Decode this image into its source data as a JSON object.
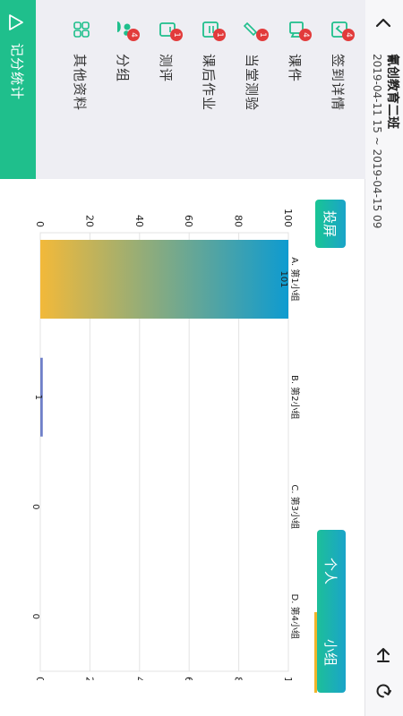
{
  "header": {
    "title": "氰创教育二班",
    "date_range": "2019-04-11 15 ~ 2019-04-15 09"
  },
  "sidebar": {
    "items": [
      {
        "label": "签到详情",
        "icon": "checkin-icon",
        "badge": "4"
      },
      {
        "label": "课件",
        "icon": "courseware-icon",
        "badge": "4"
      },
      {
        "label": "当堂测验",
        "icon": "quiz-icon",
        "badge": "1"
      },
      {
        "label": "课后作业",
        "icon": "homework-icon",
        "badge": "1"
      },
      {
        "label": "测评",
        "icon": "assessment-icon",
        "badge": "1"
      },
      {
        "label": "分组",
        "icon": "group-icon",
        "badge": "4"
      },
      {
        "label": "其他资料",
        "icon": "materials-icon",
        "badge": ""
      }
    ],
    "footer": {
      "label": "记分统计",
      "icon": "chart-triangle-icon"
    }
  },
  "toolbar": {
    "project_label": "投屏",
    "tab_individual": "个人",
    "tab_group": "小组",
    "active_tab": "小组"
  },
  "colors": {
    "accent": "#1fbf8c",
    "gradient_top": "#f2b93a",
    "gradient_bottom": "#0e9bd0",
    "badge": "#e23b3b"
  },
  "chart_data": {
    "type": "bar",
    "orientation": "vertical",
    "categories": [
      "A. 第1小组",
      "B. 第2小组",
      "C. 第3小组",
      "D. 第4小组"
    ],
    "values": [
      101,
      1,
      0,
      0
    ],
    "ylim": [
      0,
      100
    ],
    "yticks": [
      0,
      20,
      40,
      60,
      80,
      100
    ],
    "grid": true
  }
}
